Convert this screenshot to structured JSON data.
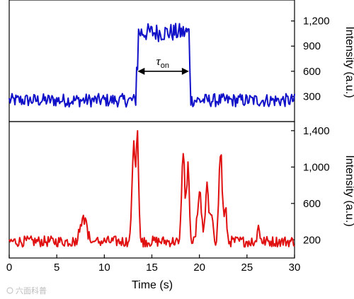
{
  "watermark": "六面科普",
  "chart_data": {
    "type": "line",
    "x_shared": {
      "label": "Time (s)",
      "range": [
        0,
        30
      ],
      "ticks": [
        0,
        5,
        10,
        15,
        20,
        25,
        30
      ],
      "tick_labels": [
        "0",
        "5",
        "10",
        "15",
        "20",
        "25",
        "30"
      ]
    },
    "panels": [
      {
        "id": "top",
        "ylabel": "Intensity (a.u.)",
        "ylim": [
          0,
          1450
        ],
        "yticks": [
          300,
          600,
          900,
          1200
        ],
        "ytick_labels": [
          "300",
          "600",
          "900",
          "1,200"
        ],
        "color": "#1010c8",
        "annotation": {
          "text": "τ",
          "subscript": "on",
          "from": 13.5,
          "to": 18.9,
          "y": 600
        },
        "segments": [
          {
            "from": 0,
            "to": 13.3,
            "mean": 230,
            "spread": 80
          },
          {
            "from": 13.5,
            "to": 18.9,
            "mean": 1030,
            "spread": 110
          },
          {
            "from": 19.1,
            "to": 30,
            "mean": 230,
            "spread": 80
          }
        ]
      },
      {
        "id": "bottom",
        "ylabel": "Intensity (a.u.)",
        "ylim": [
          0,
          1500
        ],
        "yticks": [
          200,
          600,
          1000,
          1400
        ],
        "ytick_labels": [
          "200",
          "600",
          "1,000",
          "1,400"
        ],
        "color": "#e01010",
        "baseline": {
          "mean": 170,
          "spread": 60
        },
        "peaks": [
          {
            "x": 7.8,
            "height": 330,
            "width": 0.45
          },
          {
            "x": 13.1,
            "height": 1000,
            "width": 0.28
          },
          {
            "x": 13.5,
            "height": 1150,
            "width": 0.18
          },
          {
            "x": 18.3,
            "height": 950,
            "width": 0.25
          },
          {
            "x": 18.8,
            "height": 1000,
            "width": 0.18
          },
          {
            "x": 20.0,
            "height": 500,
            "width": 0.3
          },
          {
            "x": 20.8,
            "height": 600,
            "width": 0.25
          },
          {
            "x": 21.3,
            "height": 350,
            "width": 0.2
          },
          {
            "x": 22.2,
            "height": 1130,
            "width": 0.22
          },
          {
            "x": 22.7,
            "height": 450,
            "width": 0.2
          },
          {
            "x": 26.2,
            "height": 180,
            "width": 0.2
          }
        ]
      }
    ],
    "grid": false,
    "legend": "none"
  }
}
